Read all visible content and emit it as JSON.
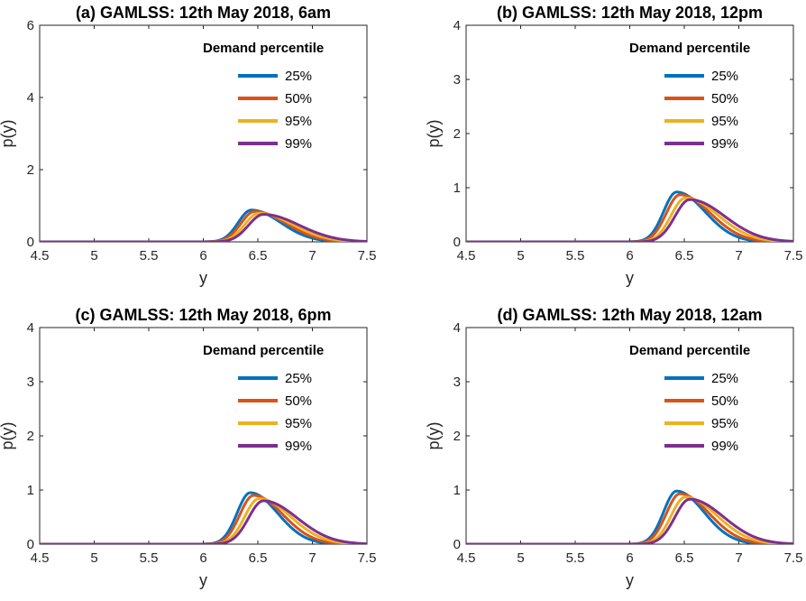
{
  "chart_data": [
    {
      "type": "line",
      "panel": "a",
      "title": "(a) GAMLSS: 12th May 2018, 6am",
      "xlabel": "y",
      "ylabel": "p(y)",
      "xlim": [
        4.5,
        7.5
      ],
      "ylim": [
        0,
        6
      ],
      "xticks": [
        "4.5",
        "5",
        "5.5",
        "6",
        "6.5",
        "7",
        "7.5"
      ],
      "yticks": [
        "0",
        "2",
        "4",
        "6"
      ],
      "legend_title": "Demand percentile",
      "legend_position": "top-right",
      "series": [
        {
          "name": "25%",
          "color": "#0072BD",
          "peak_x": 6.44,
          "peak_y": 0.88,
          "sigma_left": 0.12,
          "sigma_right": 0.27
        },
        {
          "name": "50%",
          "color": "#D95319",
          "peak_x": 6.47,
          "peak_y": 0.84,
          "sigma_left": 0.125,
          "sigma_right": 0.29
        },
        {
          "name": "95%",
          "color": "#EDB120",
          "peak_x": 6.51,
          "peak_y": 0.79,
          "sigma_left": 0.13,
          "sigma_right": 0.31
        },
        {
          "name": "99%",
          "color": "#7E2F8E",
          "peak_x": 6.55,
          "peak_y": 0.76,
          "sigma_left": 0.135,
          "sigma_right": 0.33
        }
      ]
    },
    {
      "type": "line",
      "panel": "b",
      "title": "(b) GAMLSS: 12th May 2018, 12pm",
      "xlabel": "y",
      "ylabel": "p(y)",
      "xlim": [
        4.5,
        7.5
      ],
      "ylim": [
        0,
        4
      ],
      "xticks": [
        "4.5",
        "5",
        "5.5",
        "6",
        "6.5",
        "7",
        "7.5"
      ],
      "yticks": [
        "0",
        "1",
        "2",
        "3",
        "4"
      ],
      "legend_title": "Demand percentile",
      "legend_position": "top-right",
      "series": [
        {
          "name": "25%",
          "color": "#0072BD",
          "peak_x": 6.43,
          "peak_y": 0.92,
          "sigma_left": 0.12,
          "sigma_right": 0.26
        },
        {
          "name": "50%",
          "color": "#D95319",
          "peak_x": 6.46,
          "peak_y": 0.87,
          "sigma_left": 0.125,
          "sigma_right": 0.28
        },
        {
          "name": "95%",
          "color": "#EDB120",
          "peak_x": 6.51,
          "peak_y": 0.81,
          "sigma_left": 0.13,
          "sigma_right": 0.3
        },
        {
          "name": "99%",
          "color": "#7E2F8E",
          "peak_x": 6.55,
          "peak_y": 0.78,
          "sigma_left": 0.135,
          "sigma_right": 0.32
        }
      ]
    },
    {
      "type": "line",
      "panel": "c",
      "title": "(c) GAMLSS: 12th May 2018, 6pm",
      "xlabel": "y",
      "ylabel": "p(y)",
      "xlim": [
        4.5,
        7.5
      ],
      "ylim": [
        0,
        4
      ],
      "xticks": [
        "4.5",
        "5",
        "5.5",
        "6",
        "6.5",
        "7",
        "7.5"
      ],
      "yticks": [
        "0",
        "1",
        "2",
        "3",
        "4"
      ],
      "legend_title": "Demand percentile",
      "legend_position": "top-right",
      "series": [
        {
          "name": "25%",
          "color": "#0072BD",
          "peak_x": 6.43,
          "peak_y": 0.95,
          "sigma_left": 0.12,
          "sigma_right": 0.25
        },
        {
          "name": "50%",
          "color": "#D95319",
          "peak_x": 6.46,
          "peak_y": 0.9,
          "sigma_left": 0.125,
          "sigma_right": 0.27
        },
        {
          "name": "95%",
          "color": "#EDB120",
          "peak_x": 6.51,
          "peak_y": 0.84,
          "sigma_left": 0.13,
          "sigma_right": 0.29
        },
        {
          "name": "99%",
          "color": "#7E2F8E",
          "peak_x": 6.55,
          "peak_y": 0.8,
          "sigma_left": 0.135,
          "sigma_right": 0.31
        }
      ]
    },
    {
      "type": "line",
      "panel": "d",
      "title": "(d) GAMLSS: 12th May 2018, 12am",
      "xlabel": "y",
      "ylabel": "p(y)",
      "xlim": [
        4.5,
        7.5
      ],
      "ylim": [
        0,
        4
      ],
      "xticks": [
        "4.5",
        "5",
        "5.5",
        "6",
        "6.5",
        "7",
        "7.5"
      ],
      "yticks": [
        "0",
        "1",
        "2",
        "3",
        "4"
      ],
      "legend_title": "Demand percentile",
      "legend_position": "top-right",
      "series": [
        {
          "name": "25%",
          "color": "#0072BD",
          "peak_x": 6.43,
          "peak_y": 0.98,
          "sigma_left": 0.12,
          "sigma_right": 0.25
        },
        {
          "name": "50%",
          "color": "#D95319",
          "peak_x": 6.46,
          "peak_y": 0.93,
          "sigma_left": 0.125,
          "sigma_right": 0.27
        },
        {
          "name": "95%",
          "color": "#EDB120",
          "peak_x": 6.51,
          "peak_y": 0.87,
          "sigma_left": 0.13,
          "sigma_right": 0.29
        },
        {
          "name": "99%",
          "color": "#7E2F8E",
          "peak_x": 6.55,
          "peak_y": 0.83,
          "sigma_left": 0.135,
          "sigma_right": 0.31
        }
      ]
    }
  ]
}
